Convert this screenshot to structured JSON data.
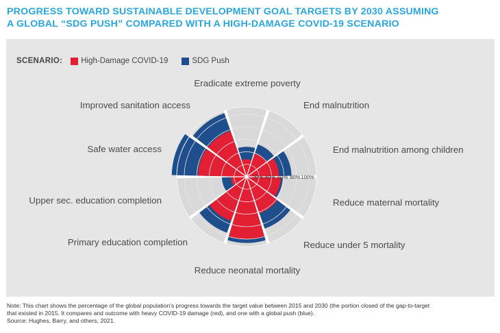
{
  "title_lines": [
    "PROGRESS TOWARD SUSTAINABLE DEVELOPMENT GOAL TARGETS BY 2030 ASSUMING",
    "A GLOBAL “SDG PUSH” COMPARED WITH A HIGH-DAMAGE COVID-19 SCENARIO"
  ],
  "legend": {
    "label": "SCENARIO:",
    "items": [
      {
        "name": "High-Damage COVID-19",
        "color": "#e31f34"
      },
      {
        "name": "SDG Push",
        "color": "#1f4e8c"
      }
    ]
  },
  "chart_data": {
    "type": "radial-bar",
    "categories": [
      "Eradicate extreme poverty",
      "End malnutrition",
      "End malnutrition among children",
      "Reduce maternal mortality",
      "Reduce under 5 mortality",
      "Reduce neonatal mortality",
      "Primary education completion",
      "Upper sec. education completion",
      "Safe water access",
      "Improved sanitation access"
    ],
    "series": [
      {
        "name": "High-Damage COVID-19",
        "color": "#e31f34",
        "values": [
          28,
          40,
          52,
          55,
          62,
          100,
          75,
          25,
          78,
          78
        ]
      },
      {
        "name": "SDG Push",
        "color": "#1f4e8c",
        "values": [
          48,
          55,
          72,
          58,
          88,
          106,
          95,
          40,
          120,
          108
        ]
      }
    ],
    "radial_ticks": [
      "20%",
      "40%",
      "60%",
      "80%",
      "100%"
    ],
    "tick_values": [
      20,
      40,
      60,
      80,
      100
    ],
    "rmax": 112,
    "colors": {
      "wedge_bg": "#d9d9d9",
      "circle_bg": "#ffffff",
      "grid": "#e6e6e6"
    }
  },
  "note_lines": [
    "Note: This chart shows the percentage of the global population's progress towards the target value between 2015 and 2030 (the portion closed of the gap-to-target",
    "that existed in 2015. It compares and outcome with heavy COVID-19 damage (red), and one with a global push (blue).",
    "Source: Hughes, Barry, and others, 2021."
  ]
}
